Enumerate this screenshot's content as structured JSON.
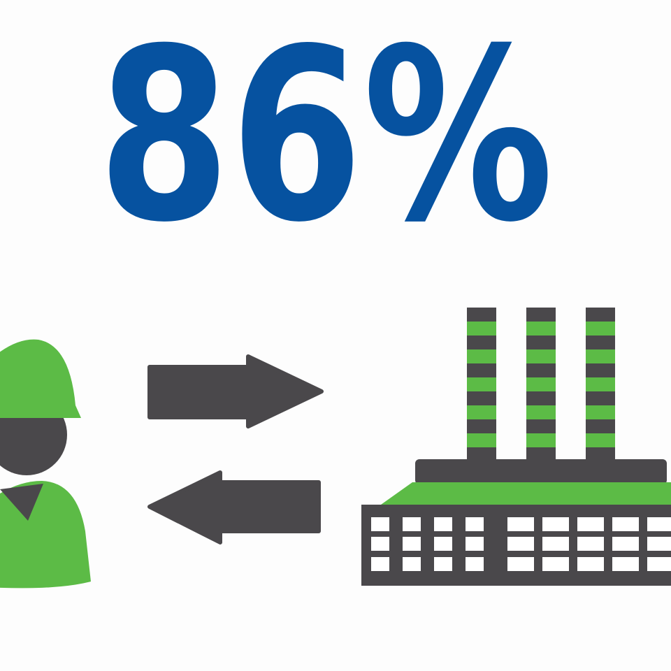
{
  "headline": {
    "value": "86%"
  },
  "icons": {
    "worker": "worker-hardhat-icon",
    "arrow_right": "arrow-right-icon",
    "arrow_left": "arrow-left-icon",
    "factory": "factory-icon"
  },
  "colors": {
    "headline_blue": "#0652a0",
    "green": "#5cbb46",
    "dark_gray": "#4a484b",
    "background": "#fdfdfd"
  }
}
